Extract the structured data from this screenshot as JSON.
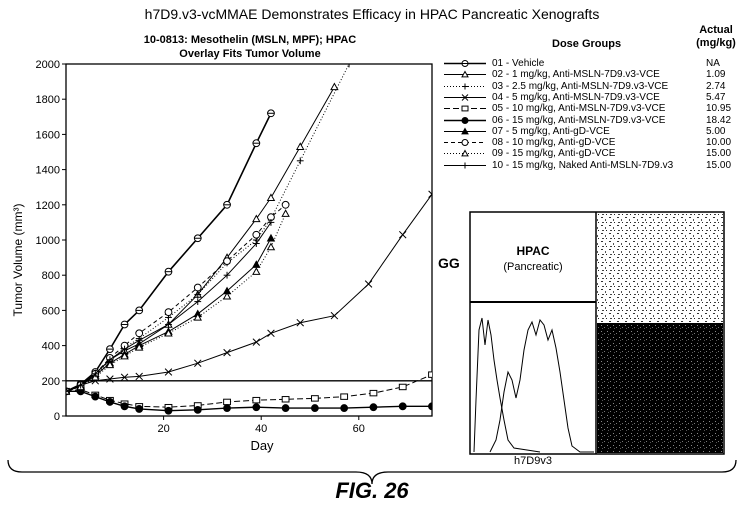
{
  "header": {
    "title": "h7D9.v3-vcMMAE Demonstrates Efficacy in HPAC Pancreatic Xenografts",
    "subtitle_line1": "10-0813: Mesothelin (MSLN, MPF); HPAC",
    "subtitle_line2": "Overlay Fits Tumor Volume"
  },
  "legend": {
    "heading": "Dose Groups",
    "value_heading_line1": "Actual",
    "value_heading_line2": "(mg/kg)"
  },
  "chart_data": {
    "type": "line",
    "xlabel": "Day",
    "ylabel": "Tumor Volume (mm³)",
    "xlim": [
      0,
      75
    ],
    "ylim": [
      0,
      2000
    ],
    "xticks": [
      20,
      40,
      60
    ],
    "yticks": [
      0,
      200,
      400,
      600,
      800,
      1000,
      1200,
      1400,
      1600,
      1800,
      2000
    ],
    "reference_line_y": 200,
    "series": [
      {
        "name": "01 - Vehicle",
        "actual": "NA",
        "marker": "circle-cross",
        "dash": "",
        "width": 1.6,
        "points": [
          [
            0,
            140
          ],
          [
            3,
            180
          ],
          [
            6,
            250
          ],
          [
            9,
            380
          ],
          [
            12,
            520
          ],
          [
            15,
            600
          ],
          [
            21,
            820
          ],
          [
            27,
            1010
          ],
          [
            33,
            1200
          ],
          [
            39,
            1550
          ],
          [
            42,
            1720
          ]
        ]
      },
      {
        "name": "02 - 1 mg/kg, Anti-MSLN-7D9.v3-VCE",
        "actual": "1.09",
        "marker": "triangle-open",
        "dash": "",
        "width": 1,
        "points": [
          [
            0,
            140
          ],
          [
            3,
            170
          ],
          [
            6,
            240
          ],
          [
            9,
            320
          ],
          [
            12,
            370
          ],
          [
            15,
            410
          ],
          [
            21,
            520
          ],
          [
            27,
            690
          ],
          [
            33,
            900
          ],
          [
            39,
            1120
          ],
          [
            42,
            1240
          ],
          [
            48,
            1530
          ],
          [
            55,
            1870
          ]
        ]
      },
      {
        "name": "03 - 2.5 mg/kg, Anti-MSLN-7D9.v3-VCE",
        "actual": "2.74",
        "marker": "plus",
        "dash": "1,2",
        "width": 1,
        "points": [
          [
            0,
            140
          ],
          [
            3,
            170
          ],
          [
            6,
            235
          ],
          [
            9,
            310
          ],
          [
            12,
            390
          ],
          [
            15,
            440
          ],
          [
            21,
            560
          ],
          [
            27,
            690
          ],
          [
            33,
            870
          ],
          [
            39,
            1000
          ],
          [
            42,
            1120
          ],
          [
            48,
            1450
          ],
          [
            58,
            2000
          ]
        ]
      },
      {
        "name": "04 - 5 mg/kg, Anti-MSLN-7D9.v3-VCE",
        "actual": "5.47",
        "marker": "x",
        "dash": "",
        "width": 1,
        "points": [
          [
            0,
            140
          ],
          [
            3,
            175
          ],
          [
            6,
            200
          ],
          [
            9,
            210
          ],
          [
            12,
            220
          ],
          [
            15,
            225
          ],
          [
            21,
            250
          ],
          [
            27,
            300
          ],
          [
            33,
            360
          ],
          [
            39,
            420
          ],
          [
            42,
            470
          ],
          [
            48,
            530
          ],
          [
            55,
            570
          ],
          [
            62,
            750
          ],
          [
            69,
            1030
          ],
          [
            75,
            1260
          ]
        ]
      },
      {
        "name": "05 - 10 mg/kg, Anti-MSLN-7D9.v3-VCE",
        "actual": "10.95",
        "marker": "square-open",
        "dash": "6,3",
        "width": 1,
        "points": [
          [
            0,
            140
          ],
          [
            3,
            150
          ],
          [
            6,
            120
          ],
          [
            9,
            90
          ],
          [
            12,
            70
          ],
          [
            15,
            55
          ],
          [
            21,
            50
          ],
          [
            27,
            60
          ],
          [
            33,
            80
          ],
          [
            39,
            90
          ],
          [
            45,
            95
          ],
          [
            51,
            100
          ],
          [
            57,
            110
          ],
          [
            63,
            130
          ],
          [
            69,
            165
          ],
          [
            75,
            235
          ]
        ]
      },
      {
        "name": "06 - 15 mg/kg, Anti-MSLN-7D9.v3-VCE",
        "actual": "18.42",
        "marker": "circle-filled",
        "dash": "",
        "width": 1.4,
        "points": [
          [
            0,
            140
          ],
          [
            3,
            140
          ],
          [
            6,
            110
          ],
          [
            9,
            80
          ],
          [
            12,
            55
          ],
          [
            15,
            40
          ],
          [
            21,
            30
          ],
          [
            27,
            35
          ],
          [
            33,
            45
          ],
          [
            39,
            50
          ],
          [
            45,
            45
          ],
          [
            51,
            45
          ],
          [
            57,
            45
          ],
          [
            63,
            50
          ],
          [
            69,
            55
          ],
          [
            75,
            55
          ]
        ]
      },
      {
        "name": "07 - 5 mg/kg, Anti-gD-VCE",
        "actual": "5.00",
        "marker": "triangle-filled",
        "dash": "",
        "width": 1,
        "points": [
          [
            0,
            140
          ],
          [
            3,
            170
          ],
          [
            6,
            230
          ],
          [
            9,
            300
          ],
          [
            12,
            350
          ],
          [
            15,
            400
          ],
          [
            21,
            480
          ],
          [
            27,
            580
          ],
          [
            33,
            710
          ],
          [
            39,
            860
          ],
          [
            42,
            1010
          ]
        ]
      },
      {
        "name": "08 - 10 mg/kg, Anti-gD-VCE",
        "actual": "10.00",
        "marker": "circle-open",
        "dash": "4,3",
        "width": 1,
        "points": [
          [
            0,
            140
          ],
          [
            3,
            175
          ],
          [
            6,
            240
          ],
          [
            9,
            330
          ],
          [
            12,
            400
          ],
          [
            15,
            470
          ],
          [
            21,
            590
          ],
          [
            27,
            730
          ],
          [
            33,
            880
          ],
          [
            39,
            1030
          ],
          [
            42,
            1130
          ],
          [
            45,
            1200
          ]
        ]
      },
      {
        "name": "09 - 15 mg/kg, Anti-gD-VCE",
        "actual": "15.00",
        "marker": "triangle-open",
        "dash": "1,2",
        "width": 1,
        "points": [
          [
            0,
            140
          ],
          [
            3,
            165
          ],
          [
            6,
            220
          ],
          [
            9,
            290
          ],
          [
            12,
            340
          ],
          [
            15,
            390
          ],
          [
            21,
            470
          ],
          [
            27,
            560
          ],
          [
            33,
            680
          ],
          [
            39,
            820
          ],
          [
            42,
            960
          ],
          [
            45,
            1150
          ]
        ]
      },
      {
        "name": "10 - 15 mg/kg, Naked Anti-MSLN-7D9.v3",
        "actual": "15.00",
        "marker": "plus",
        "dash": "",
        "width": 1,
        "points": [
          [
            0,
            140
          ],
          [
            3,
            175
          ],
          [
            6,
            240
          ],
          [
            9,
            320
          ],
          [
            12,
            380
          ],
          [
            15,
            430
          ],
          [
            21,
            520
          ],
          [
            27,
            650
          ],
          [
            33,
            800
          ],
          [
            39,
            980
          ],
          [
            42,
            1100
          ]
        ]
      }
    ]
  },
  "inset": {
    "title": "HPAC",
    "subtitle": "(Pancreatic)",
    "panel_label": "GG",
    "xlabel": "h7D9v3"
  },
  "figure_label": "FIG. 26"
}
